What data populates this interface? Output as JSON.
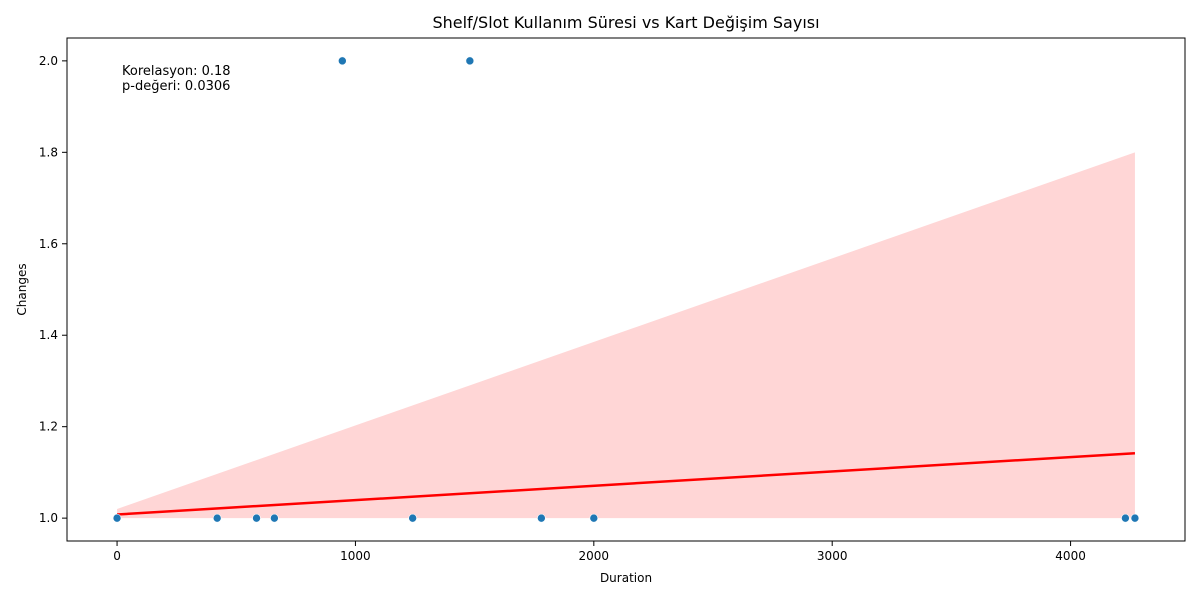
{
  "chart_data": {
    "type": "scatter",
    "title": "Shelf/Slot Kullanım Süresi vs Kart Değişim Sayısı",
    "xlabel": "Duration",
    "ylabel": "Changes",
    "xlim": [
      -210,
      4480
    ],
    "ylim": [
      0.95,
      2.05
    ],
    "xticks": [
      0,
      1000,
      2000,
      3000,
      4000
    ],
    "yticks": [
      1.0,
      1.2,
      1.4,
      1.6,
      1.8,
      2.0
    ],
    "ytick_labels": [
      "1.0",
      "1.2",
      "1.4",
      "1.6",
      "1.8",
      "2.0"
    ],
    "grid": false,
    "points": [
      {
        "x": 0,
        "y": 1
      },
      {
        "x": 420,
        "y": 1
      },
      {
        "x": 585,
        "y": 1
      },
      {
        "x": 660,
        "y": 1
      },
      {
        "x": 945,
        "y": 2
      },
      {
        "x": 1240,
        "y": 1
      },
      {
        "x": 1480,
        "y": 2
      },
      {
        "x": 1780,
        "y": 1
      },
      {
        "x": 2000,
        "y": 1
      },
      {
        "x": 4230,
        "y": 1
      },
      {
        "x": 4270,
        "y": 1
      }
    ],
    "point_color": "#1f77b4",
    "regression": {
      "x": [
        0,
        4270
      ],
      "y": [
        1.008,
        1.142
      ],
      "color": "#ff0000"
    },
    "confidence_band": {
      "x": [
        0,
        4270
      ],
      "upper": [
        1.02,
        1.8
      ],
      "lower": [
        1.0,
        1.0
      ],
      "color": "#ffd6d6"
    },
    "annotation": {
      "lines": [
        "Korelasyon: 0.18",
        "p-değeri: 0.0306"
      ]
    }
  }
}
